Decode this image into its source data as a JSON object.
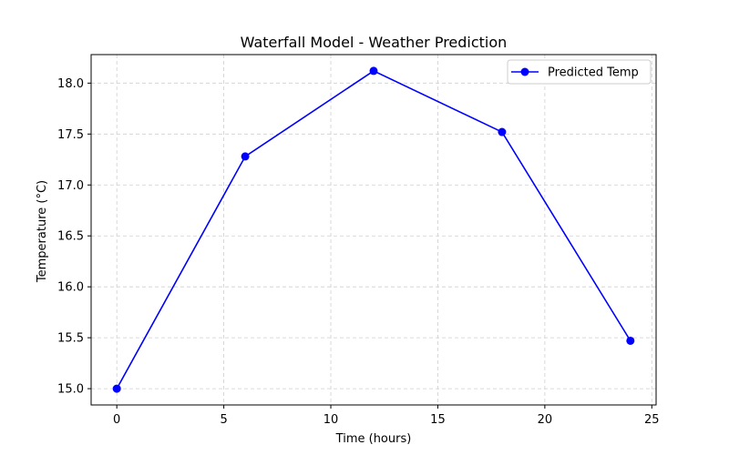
{
  "chart_data": {
    "type": "line",
    "title": "Waterfall Model - Weather Prediction",
    "xlabel": "Time (hours)",
    "ylabel": "Temperature (°C)",
    "x": [
      0,
      6,
      12,
      18,
      24
    ],
    "series": [
      {
        "name": "Predicted Temp",
        "values": [
          15.0,
          17.28,
          18.12,
          17.52,
          15.47
        ],
        "color": "#0000ff",
        "marker": "circle"
      }
    ],
    "xlim": [
      -1.2,
      25.2
    ],
    "ylim": [
      14.84,
      18.28
    ],
    "xticks": [
      0,
      5,
      10,
      15,
      20,
      25
    ],
    "xtick_labels": [
      "0",
      "5",
      "10",
      "15",
      "20",
      "25"
    ],
    "yticks": [
      15.0,
      15.5,
      16.0,
      16.5,
      17.0,
      17.5,
      18.0
    ],
    "ytick_labels": [
      "15.0",
      "15.5",
      "16.0",
      "16.5",
      "17.0",
      "17.5",
      "18.0"
    ],
    "grid": true,
    "grid_style": "dashed",
    "legend_position": "top-right"
  }
}
